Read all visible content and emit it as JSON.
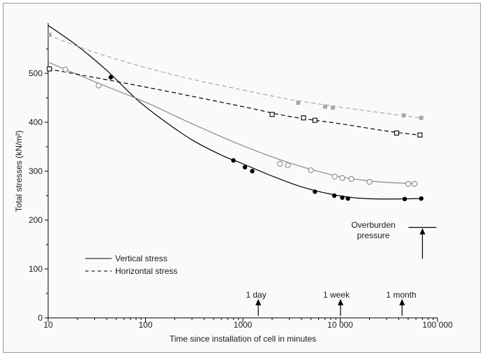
{
  "chart_data": {
    "type": "scatter",
    "xscale": "log",
    "xlim": [
      10,
      100000
    ],
    "ylim": [
      0,
      600
    ],
    "xlabel": "Time since installation of cell in minutes",
    "ylabel": "Total stresses (kN/m²)",
    "x_ticks": [
      "10",
      "100",
      "1000",
      "10 000",
      "100 000"
    ],
    "y_ticks": [
      "0",
      "100",
      "200",
      "300",
      "400",
      "500"
    ],
    "legend_position": "bottom-left",
    "legend": [
      {
        "label": "Vertical stress",
        "style": "solid"
      },
      {
        "label": "Horizontal stress",
        "style": "dashed"
      }
    ],
    "time_markers": [
      {
        "label": "1 day",
        "x": 1440
      },
      {
        "label": "1 week",
        "x": 10080
      },
      {
        "label": "1 month",
        "x": 43200
      }
    ],
    "overburden": {
      "label_line1": "Overburden",
      "label_line2": "pressure",
      "x": 70000,
      "y": 185
    },
    "series": [
      {
        "key": "vertical_solid_black",
        "color": "#000000",
        "marker": "filled_circle",
        "line_style": "solid",
        "points": [
          [
            44,
            492
          ],
          [
            800,
            322
          ],
          [
            1050,
            308
          ],
          [
            1250,
            300
          ],
          [
            5500,
            258
          ],
          [
            8700,
            250
          ],
          [
            10500,
            246
          ],
          [
            12000,
            244
          ],
          [
            46000,
            243
          ],
          [
            68000,
            244
          ]
        ],
        "curve": [
          [
            10,
            598
          ],
          [
            20,
            556
          ],
          [
            40,
            506
          ],
          [
            80,
            448
          ],
          [
            150,
            405
          ],
          [
            300,
            364
          ],
          [
            600,
            333
          ],
          [
            1000,
            315
          ],
          [
            2000,
            290
          ],
          [
            4000,
            268
          ],
          [
            8000,
            253
          ],
          [
            15000,
            245
          ],
          [
            30000,
            243
          ],
          [
            70000,
            244
          ]
        ]
      },
      {
        "key": "vertical_solid_grey",
        "color": "#8a8a8a",
        "marker": "open_circle",
        "line_style": "solid",
        "points": [
          [
            15,
            508
          ],
          [
            33,
            475
          ],
          [
            2400,
            315
          ],
          [
            2900,
            312
          ],
          [
            5000,
            302
          ],
          [
            8800,
            289
          ],
          [
            10500,
            286
          ],
          [
            13000,
            284
          ],
          [
            20000,
            278
          ],
          [
            50000,
            274
          ],
          [
            58000,
            274
          ]
        ],
        "curve": [
          [
            10,
            523
          ],
          [
            30,
            483
          ],
          [
            100,
            441
          ],
          [
            300,
            397
          ],
          [
            1000,
            352
          ],
          [
            3000,
            317
          ],
          [
            8000,
            293
          ],
          [
            15000,
            283
          ],
          [
            30000,
            277
          ],
          [
            60000,
            275
          ]
        ]
      },
      {
        "key": "horizontal_dashed_black",
        "color": "#000000",
        "marker": "open_square",
        "line_style": "dashed",
        "points": [
          [
            10.3,
            509
          ],
          [
            2000,
            416
          ],
          [
            4200,
            409
          ],
          [
            5500,
            404
          ],
          [
            38000,
            378
          ],
          [
            66000,
            374
          ]
        ],
        "curve": [
          [
            10,
            509
          ],
          [
            100,
            472
          ],
          [
            1000,
            432
          ],
          [
            3000,
            412
          ],
          [
            10000,
            397
          ],
          [
            30000,
            382
          ],
          [
            70000,
            373
          ]
        ]
      },
      {
        "key": "horizontal_dashed_grey",
        "color": "#a8a8a8",
        "marker": "filled_square",
        "line_style": "dashed",
        "points": [
          [
            10.3,
            579
          ],
          [
            3700,
            440
          ],
          [
            7000,
            432
          ],
          [
            8400,
            430
          ],
          [
            45000,
            414
          ],
          [
            68000,
            409
          ]
        ],
        "curve": [
          [
            10,
            578
          ],
          [
            30,
            543
          ],
          [
            100,
            512
          ],
          [
            300,
            488
          ],
          [
            1000,
            466
          ],
          [
            3000,
            447
          ],
          [
            10000,
            431
          ],
          [
            30000,
            418
          ],
          [
            70000,
            408
          ]
        ]
      }
    ]
  }
}
